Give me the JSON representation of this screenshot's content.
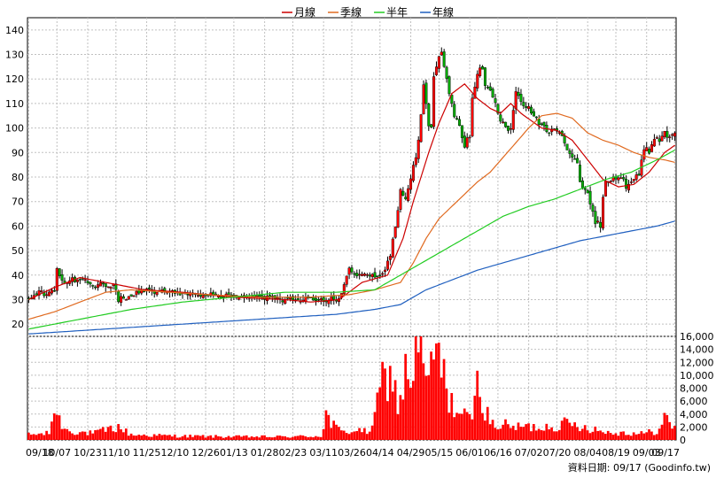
{
  "source_note": "資料日期: 09/17  (Goodinfo.tw)",
  "colors": {
    "month_ma": "#cc0000",
    "quarter_ma": "#e06a20",
    "half_year_ma": "#22cc22",
    "year_ma": "#1f5fbf",
    "candle_up": "#ff0000",
    "candle_down": "#00aa00",
    "volume": "#ff0000",
    "grid": "#c0c0c0"
  },
  "chart_data": [
    {
      "type": "candlestick",
      "title": "",
      "legend": {
        "placement": "top-center",
        "items": [
          {
            "name": "月線",
            "color_key": "month_ma"
          },
          {
            "name": "季線",
            "color_key": "quarter_ma"
          },
          {
            "name": "半年",
            "color_key": "half_year_ma"
          },
          {
            "name": "年線",
            "color_key": "year_ma"
          }
        ]
      },
      "ylim": [
        15,
        145
      ],
      "y_ticks": [
        20,
        30,
        40,
        50,
        60,
        70,
        80,
        90,
        100,
        110,
        120,
        130,
        140
      ],
      "grid": true,
      "x_tick_labels": [
        "09/18",
        "10/07",
        "10/23",
        "11/10",
        "11/25",
        "12/10",
        "12/26",
        "01/13",
        "01/28",
        "02/23",
        "03/11",
        "03/26",
        "04/14",
        "04/29",
        "05/15",
        "06/01",
        "06/16",
        "07/02",
        "07/20",
        "08/04",
        "08/19",
        "09/03",
        "09/17"
      ],
      "close_series": [
        [
          0,
          31
        ],
        [
          5,
          33
        ],
        [
          8,
          32
        ],
        [
          10,
          34
        ],
        [
          11,
          42
        ],
        [
          13,
          38
        ],
        [
          14,
          36
        ],
        [
          16,
          38
        ],
        [
          20,
          38
        ],
        [
          24,
          37
        ],
        [
          26,
          36
        ],
        [
          30,
          36
        ],
        [
          33,
          36
        ],
        [
          35,
          30
        ],
        [
          38,
          31
        ],
        [
          40,
          32
        ],
        [
          45,
          34
        ],
        [
          55,
          33
        ],
        [
          60,
          32
        ],
        [
          70,
          32
        ],
        [
          80,
          31
        ],
        [
          90,
          31
        ],
        [
          100,
          30
        ],
        [
          110,
          30
        ],
        [
          121,
          30
        ],
        [
          121,
          30
        ],
        [
          123,
          37
        ],
        [
          125,
          42
        ],
        [
          127,
          40
        ],
        [
          130,
          41
        ],
        [
          134,
          40
        ],
        [
          136,
          39
        ],
        [
          138,
          40
        ],
        [
          139,
          43
        ],
        [
          141,
          48
        ],
        [
          143,
          60
        ],
        [
          145,
          75
        ],
        [
          147,
          70
        ],
        [
          149,
          80
        ],
        [
          151,
          88
        ],
        [
          152,
          95
        ],
        [
          154,
          118
        ],
        [
          156,
          100
        ],
        [
          157,
          100
        ],
        [
          158,
          122
        ],
        [
          160,
          130
        ],
        [
          161,
          132
        ],
        [
          163,
          120
        ],
        [
          164,
          113
        ],
        [
          166,
          105
        ],
        [
          168,
          100
        ],
        [
          170,
          93
        ],
        [
          172,
          97
        ],
        [
          173,
          112
        ],
        [
          175,
          123
        ],
        [
          177,
          125
        ],
        [
          178,
          118
        ],
        [
          180,
          115
        ],
        [
          182,
          110
        ],
        [
          184,
          103
        ],
        [
          186,
          100
        ],
        [
          188,
          99
        ],
        [
          190,
          115
        ],
        [
          191,
          113
        ],
        [
          193,
          110
        ],
        [
          195,
          108
        ],
        [
          197,
          105
        ],
        [
          199,
          102
        ],
        [
          201,
          100
        ],
        [
          202,
          98
        ],
        [
          205,
          100
        ],
        [
          207,
          98
        ],
        [
          210,
          92
        ],
        [
          212,
          88
        ],
        [
          214,
          85
        ],
        [
          215,
          78
        ],
        [
          217,
          75
        ],
        [
          219,
          70
        ],
        [
          221,
          62
        ],
        [
          223,
          60
        ],
        [
          224,
          72
        ],
        [
          225,
          78
        ],
        [
          228,
          80
        ],
        [
          232,
          80
        ],
        [
          233,
          75
        ],
        [
          236,
          79
        ],
        [
          238,
          81
        ],
        [
          240,
          92
        ],
        [
          242,
          90
        ],
        [
          244,
          96
        ],
        [
          246,
          95
        ],
        [
          248,
          98
        ],
        [
          250,
          96
        ],
        [
          252,
          97
        ]
      ],
      "series": [
        {
          "name": "月線",
          "color_key": "month_ma",
          "points": [
            [
              0,
              30
            ],
            [
              10,
              35
            ],
            [
              20,
              39
            ],
            [
              30,
              37
            ],
            [
              45,
              34
            ],
            [
              60,
              33
            ],
            [
              80,
              31
            ],
            [
              100,
              30
            ],
            [
              110,
              29
            ],
            [
              121,
              30
            ],
            [
              130,
              37
            ],
            [
              140,
              40
            ],
            [
              146,
              55
            ],
            [
              150,
              70
            ],
            [
              156,
              90
            ],
            [
              160,
              102
            ],
            [
              165,
              114
            ],
            [
              170,
              118
            ],
            [
              175,
              112
            ],
            [
              180,
              108
            ],
            [
              184,
              106
            ],
            [
              188,
              110
            ],
            [
              192,
              106
            ],
            [
              200,
              100
            ],
            [
              206,
              99
            ],
            [
              212,
              95
            ],
            [
              218,
              87
            ],
            [
              224,
              79
            ],
            [
              230,
              76
            ],
            [
              236,
              77
            ],
            [
              242,
              82
            ],
            [
              248,
              90
            ],
            [
              252,
              93
            ]
          ]
        },
        {
          "name": "季線",
          "color_key": "quarter_ma",
          "points": [
            [
              0,
              22
            ],
            [
              10,
              25
            ],
            [
              20,
              29
            ],
            [
              30,
              33
            ],
            [
              40,
              34
            ],
            [
              55,
              33
            ],
            [
              70,
              32
            ],
            [
              90,
              31
            ],
            [
              110,
              31
            ],
            [
              125,
              32
            ],
            [
              135,
              34
            ],
            [
              145,
              37
            ],
            [
              150,
              45
            ],
            [
              155,
              55
            ],
            [
              160,
              63
            ],
            [
              165,
              68
            ],
            [
              170,
              73
            ],
            [
              175,
              78
            ],
            [
              180,
              82
            ],
            [
              185,
              88
            ],
            [
              190,
              94
            ],
            [
              195,
              100
            ],
            [
              200,
              105
            ],
            [
              206,
              106
            ],
            [
              212,
              104
            ],
            [
              218,
              98
            ],
            [
              224,
              95
            ],
            [
              230,
              93
            ],
            [
              236,
              90
            ],
            [
              242,
              88
            ],
            [
              248,
              87
            ],
            [
              252,
              86
            ]
          ]
        },
        {
          "name": "半年",
          "color_key": "half_year_ma",
          "points": [
            [
              0,
              18
            ],
            [
              20,
              22
            ],
            [
              40,
              26
            ],
            [
              60,
              29
            ],
            [
              80,
              31
            ],
            [
              100,
              33
            ],
            [
              120,
              33
            ],
            [
              135,
              34
            ],
            [
              145,
              40
            ],
            [
              155,
              46
            ],
            [
              165,
              52
            ],
            [
              175,
              58
            ],
            [
              185,
              64
            ],
            [
              195,
              68
            ],
            [
              205,
              71
            ],
            [
              215,
              75
            ],
            [
              225,
              79
            ],
            [
              235,
              82
            ],
            [
              245,
              87
            ],
            [
              252,
              91
            ]
          ]
        },
        {
          "name": "年線",
          "color_key": "year_ma",
          "points": [
            [
              0,
              16
            ],
            [
              30,
              18
            ],
            [
              60,
              20
            ],
            [
              90,
              22
            ],
            [
              120,
              24
            ],
            [
              135,
              26
            ],
            [
              145,
              28
            ],
            [
              155,
              34
            ],
            [
              165,
              38
            ],
            [
              175,
              42
            ],
            [
              185,
              45
            ],
            [
              195,
              48
            ],
            [
              205,
              51
            ],
            [
              215,
              54
            ],
            [
              225,
              56
            ],
            [
              235,
              58
            ],
            [
              245,
              60
            ],
            [
              252,
              62
            ]
          ]
        }
      ]
    },
    {
      "type": "bar",
      "title": "",
      "ylim": [
        0,
        16000
      ],
      "y_ticks": [
        0,
        2000,
        4000,
        6000,
        8000,
        10000,
        12000,
        14000,
        16000
      ],
      "y_tick_labels": [
        "0",
        "2,000",
        "4,000",
        "6,000",
        "8,000",
        "10,000",
        "12,000",
        "14,000",
        "16,000"
      ],
      "volume_profile": [
        [
          0,
          800
        ],
        [
          8,
          1000
        ],
        [
          10,
          5000
        ],
        [
          12,
          3000
        ],
        [
          15,
          1500
        ],
        [
          20,
          1200
        ],
        [
          25,
          1000
        ],
        [
          35,
          2000
        ],
        [
          40,
          800
        ],
        [
          60,
          600
        ],
        [
          80,
          500
        ],
        [
          100,
          500
        ],
        [
          114,
          600
        ],
        [
          116,
          4000
        ],
        [
          118,
          2500
        ],
        [
          122,
          1200
        ],
        [
          128,
          1500
        ],
        [
          132,
          1200
        ],
        [
          135,
          3000
        ],
        [
          137,
          8000
        ],
        [
          140,
          10500
        ],
        [
          142,
          9000
        ],
        [
          144,
          5500
        ],
        [
          146,
          8500
        ],
        [
          148,
          11000
        ],
        [
          150,
          9000
        ],
        [
          152,
          16000
        ],
        [
          154,
          11000
        ],
        [
          156,
          7500
        ],
        [
          158,
          14000
        ],
        [
          160,
          13000
        ],
        [
          162,
          9000
        ],
        [
          164,
          7000
        ],
        [
          166,
          5000
        ],
        [
          168,
          4000
        ],
        [
          172,
          3000
        ],
        [
          174,
          6000
        ],
        [
          176,
          10000
        ],
        [
          178,
          5000
        ],
        [
          180,
          2500
        ],
        [
          190,
          2000
        ],
        [
          200,
          2000
        ],
        [
          210,
          2500
        ],
        [
          218,
          2000
        ],
        [
          225,
          1200
        ],
        [
          240,
          1000
        ],
        [
          246,
          1500
        ],
        [
          248,
          3500
        ],
        [
          250,
          2500
        ],
        [
          252,
          1800
        ]
      ]
    }
  ]
}
